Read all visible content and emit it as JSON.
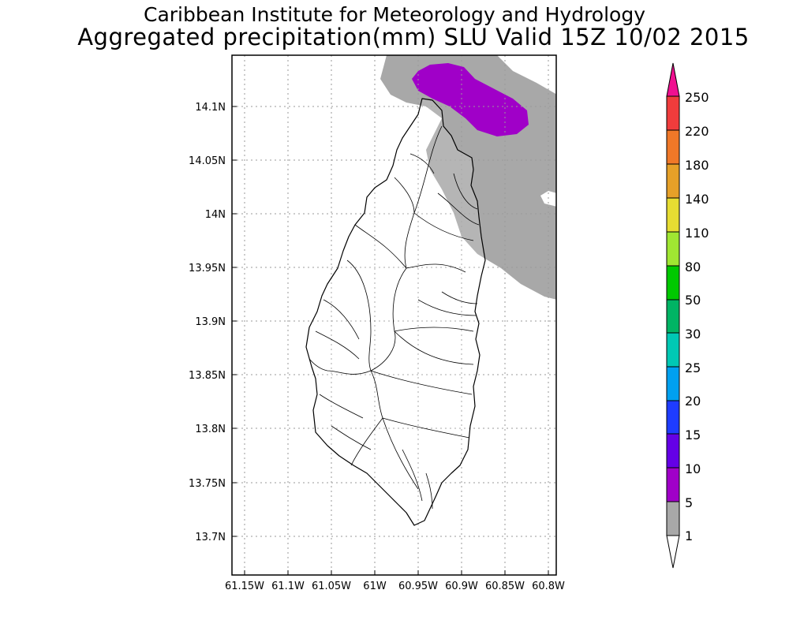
{
  "header": {
    "title_line1": "Caribbean Institute for Meteorology and Hydrology",
    "title_line2": "Aggregated precipitation(mm) SLU Valid 15Z 10/02 2015"
  },
  "map": {
    "y_ticks": [
      "14.1N",
      "14.05N",
      "14N",
      "13.95N",
      "13.9N",
      "13.85N",
      "13.8N",
      "13.75N",
      "13.7N"
    ],
    "x_ticks": [
      "61.15W",
      "61.1W",
      "61.05W",
      "61W",
      "60.95W",
      "60.9W",
      "60.85W",
      "60.8W"
    ],
    "grid": "dotted",
    "fields": [
      {
        "name": "1-5 mm",
        "color": "#a8a8a8"
      },
      {
        "name": "5-10 mm",
        "color": "#a000c8"
      }
    ]
  },
  "legend": {
    "levels": [
      "250",
      "220",
      "180",
      "140",
      "110",
      "80",
      "50",
      "30",
      "25",
      "20",
      "15",
      "10",
      "5",
      "1"
    ],
    "colors": [
      "#f01090",
      "#f03c3c",
      "#f07828",
      "#e6a028",
      "#e6dc32",
      "#a0e632",
      "#00c800",
      "#00b464",
      "#00c8b4",
      "#00a0f0",
      "#1e3cff",
      "#6400e6",
      "#a000c8",
      "#a8a8a8",
      "#ffffff"
    ]
  }
}
